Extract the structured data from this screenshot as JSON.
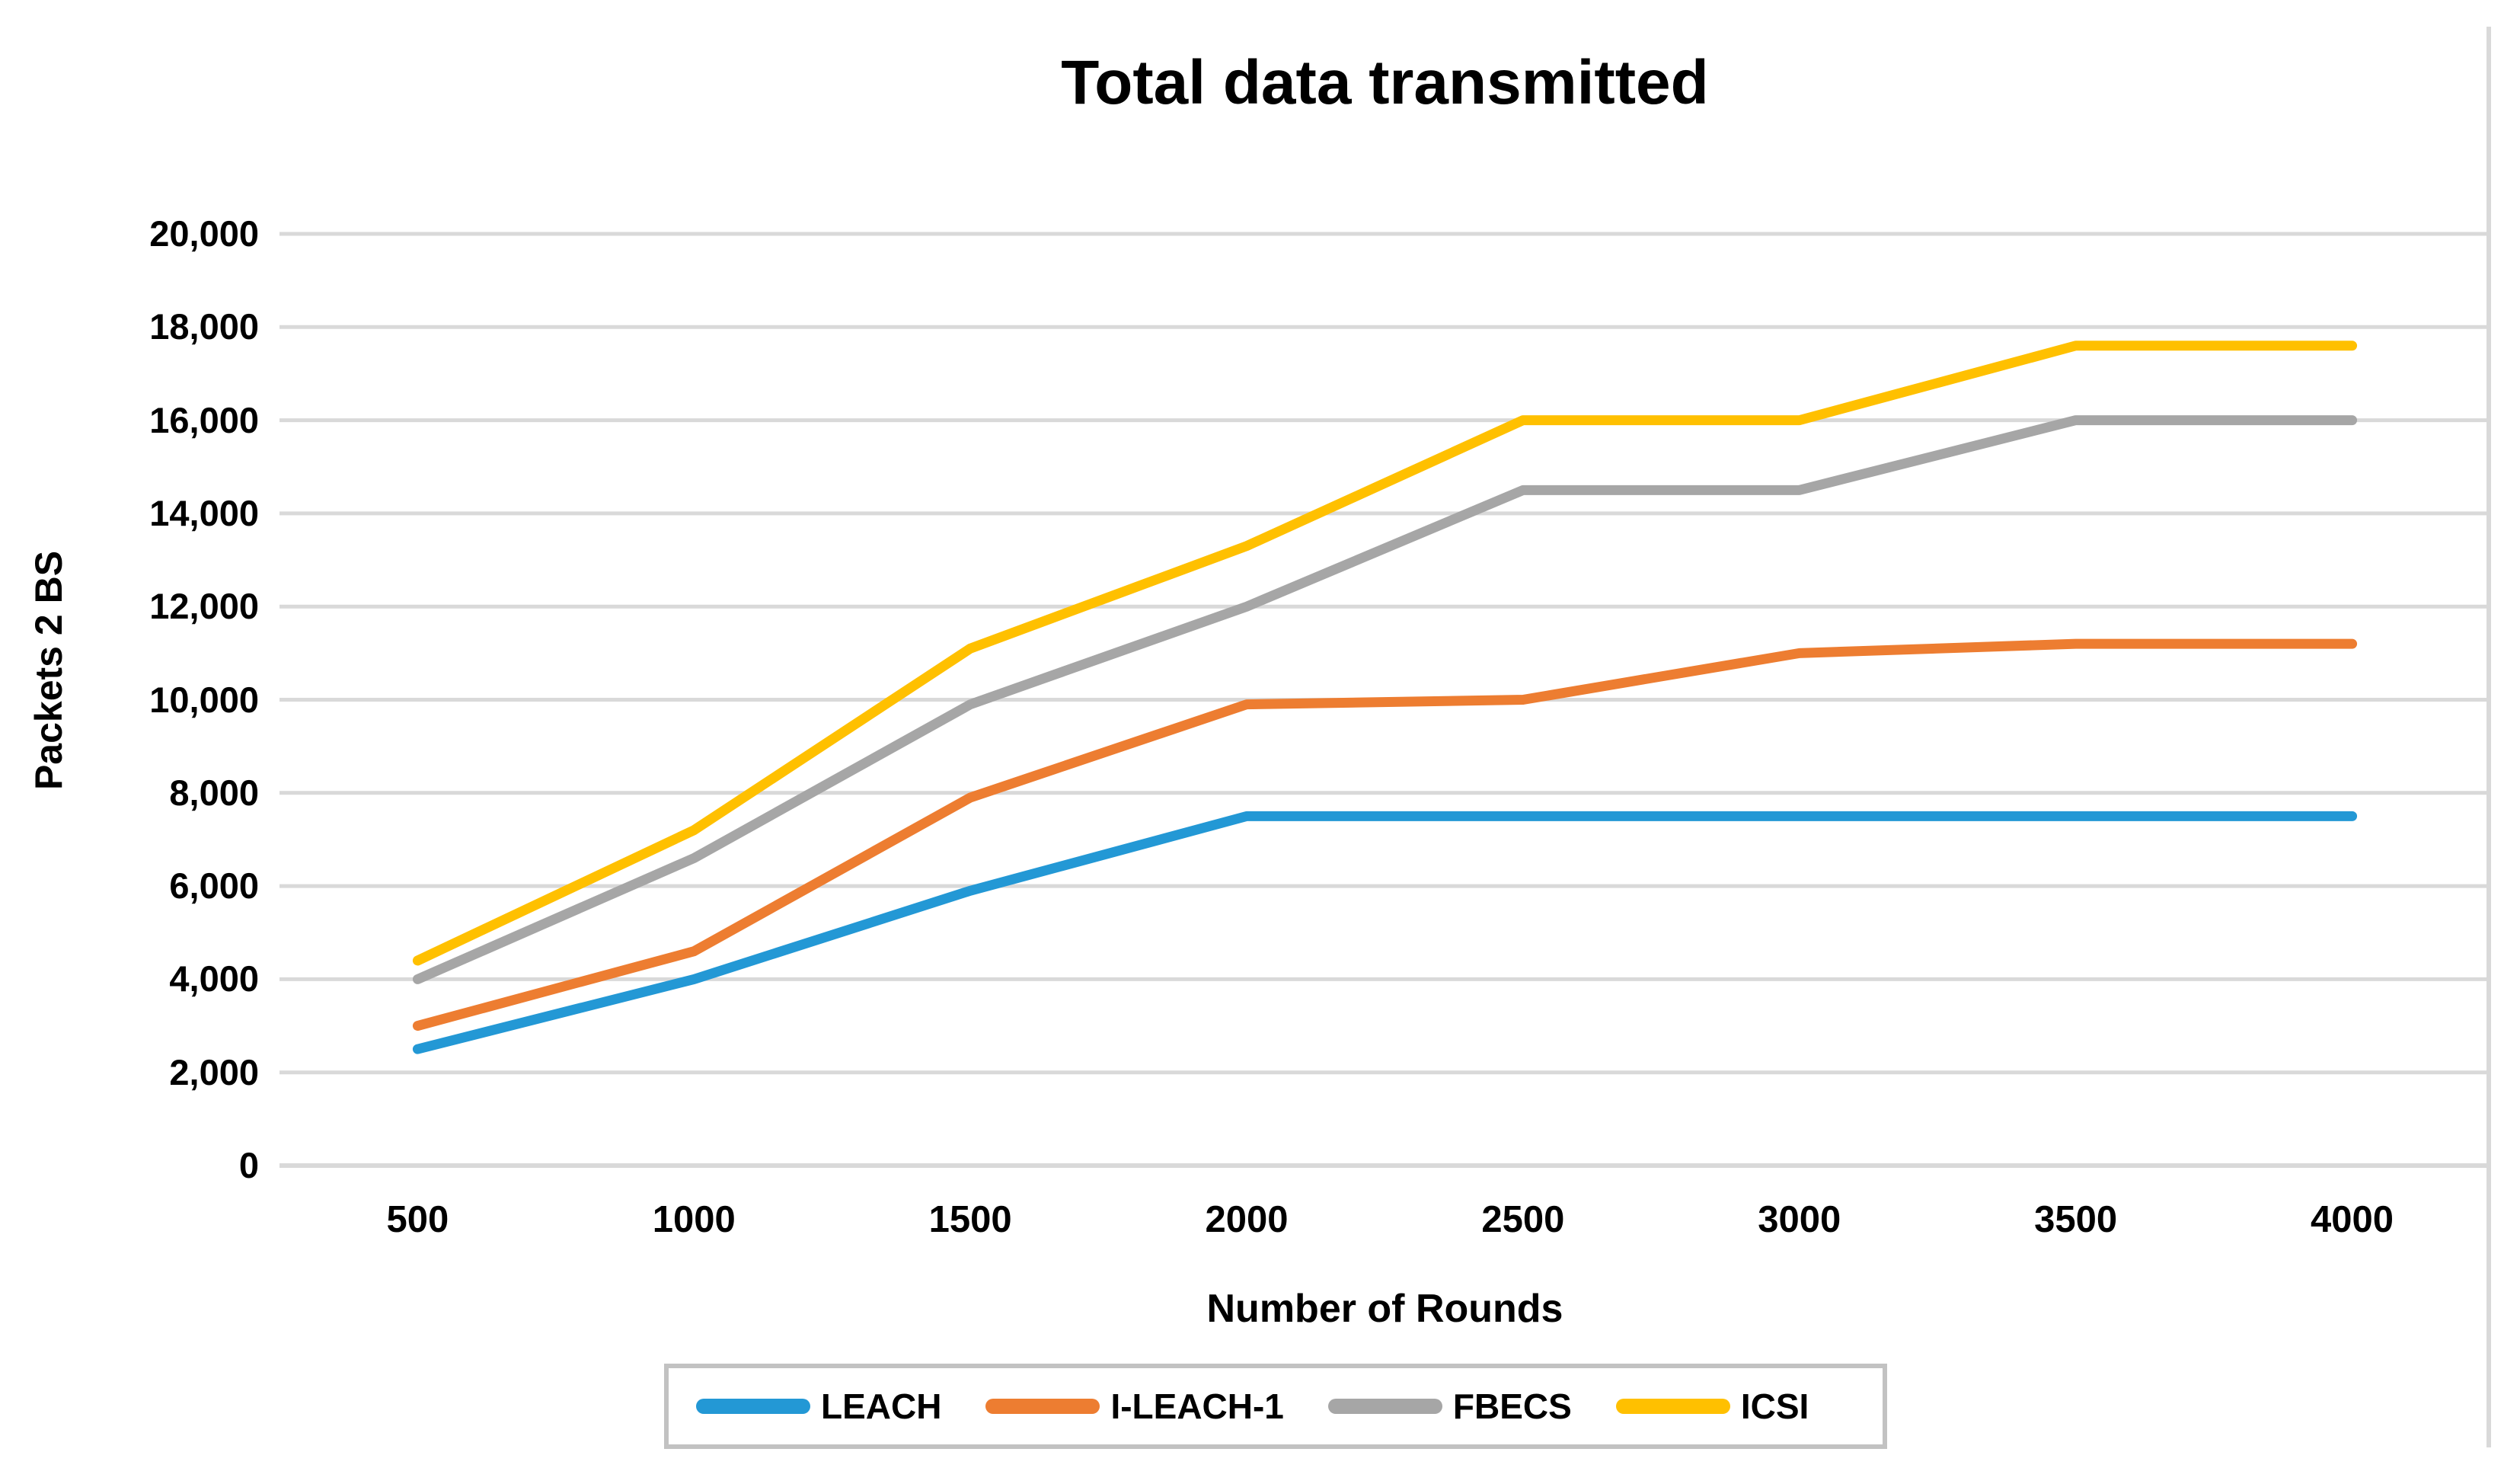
{
  "title": "Total data transmitted",
  "chart_data": {
    "type": "line",
    "title": "Total data transmitted",
    "xlabel": "Number of Rounds",
    "ylabel": "Packets 2 BS",
    "categories": [
      500,
      1000,
      1500,
      2000,
      2500,
      3000,
      3500,
      4000
    ],
    "x_tick_labels": [
      "500",
      "1000",
      "1500",
      "2000",
      "2500",
      "3000",
      "3500",
      "4000"
    ],
    "series": [
      {
        "name": "LEACH",
        "color": "#2398d5",
        "values": [
          2500,
          4000,
          5900,
          7500,
          7500,
          7500,
          7500,
          7500
        ]
      },
      {
        "name": "I-LEACH-1",
        "color": "#ed7d31",
        "values": [
          3000,
          4600,
          7900,
          9900,
          10000,
          11000,
          11200,
          11200
        ]
      },
      {
        "name": "FBECS",
        "color": "#a6a6a6",
        "values": [
          4000,
          6600,
          9900,
          12000,
          14500,
          14500,
          16000,
          16000
        ]
      },
      {
        "name": "ICSI",
        "color": "#ffc000",
        "values": [
          4400,
          7200,
          11100,
          13300,
          16000,
          16000,
          17600,
          17600
        ]
      }
    ],
    "ylim": [
      0,
      20000
    ],
    "y_tick_step": 2000,
    "y_tick_labels": [
      "20,000",
      "18,000",
      "16,000",
      "14,000",
      "12,000",
      "10,000",
      "8,000",
      "6,000",
      "4,000",
      "2,000",
      "0"
    ],
    "grid": "horizontal-only",
    "gridline_color": "#d9d9d9",
    "axis_line_color": "#d9d9d9",
    "legend_position": "bottom",
    "legend_border_color": "#c2c2c2",
    "background_color": "#ffffff"
  }
}
